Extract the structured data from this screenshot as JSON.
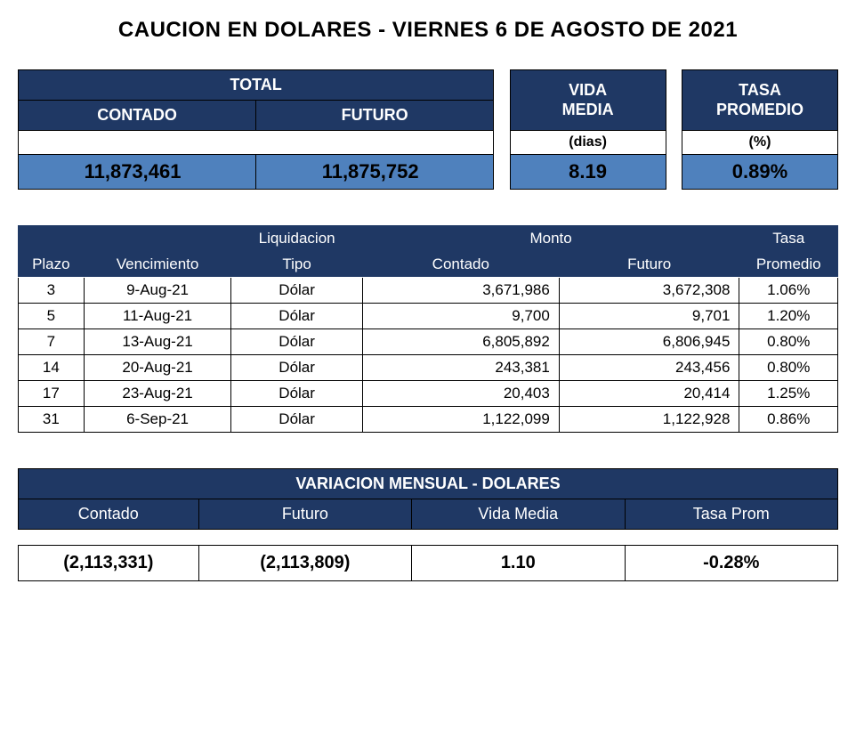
{
  "title": "CAUCION EN DOLARES - VIERNES 6 DE AGOSTO DE 2021",
  "summary": {
    "headers": {
      "total": "TOTAL",
      "contado": "CONTADO",
      "futuro": "FUTURO",
      "vida_media": "VIDA MEDIA",
      "tasa_promedio": "TASA PROMEDIO",
      "dias": "(dias)",
      "pct": "(%)"
    },
    "values": {
      "contado": "11,873,461",
      "futuro": "11,875,752",
      "vida_media": "8.19",
      "tasa_promedio": "0.89%"
    },
    "colors": {
      "header_bg": "#1f3864",
      "header_fg": "#ffffff",
      "value_bg": "#4f81bd",
      "border": "#000000"
    }
  },
  "detail": {
    "headers_top": {
      "plazo": "",
      "vencimiento": "",
      "liquidacion": "Liquidacion",
      "monto": "Monto",
      "tasa": "Tasa"
    },
    "headers_bottom": {
      "plazo": "Plazo",
      "vencimiento": "Vencimiento",
      "tipo": "Tipo",
      "contado": "Contado",
      "futuro": "Futuro",
      "promedio": "Promedio"
    },
    "columns": [
      "plazo",
      "vencimiento",
      "tipo",
      "contado",
      "futuro",
      "tasa"
    ],
    "col_align": [
      "c",
      "c",
      "c",
      "r",
      "r",
      "c"
    ],
    "col_widths_pct": [
      8,
      18,
      16,
      24,
      22,
      12
    ],
    "rows": [
      {
        "plazo": "3",
        "vencimiento": "9-Aug-21",
        "tipo": "Dólar",
        "contado": "3,671,986",
        "futuro": "3,672,308",
        "tasa": "1.06%"
      },
      {
        "plazo": "5",
        "vencimiento": "11-Aug-21",
        "tipo": "Dólar",
        "contado": "9,700",
        "futuro": "9,701",
        "tasa": "1.20%"
      },
      {
        "plazo": "7",
        "vencimiento": "13-Aug-21",
        "tipo": "Dólar",
        "contado": "6,805,892",
        "futuro": "6,806,945",
        "tasa": "0.80%"
      },
      {
        "plazo": "14",
        "vencimiento": "20-Aug-21",
        "tipo": "Dólar",
        "contado": "243,381",
        "futuro": "243,456",
        "tasa": "0.80%"
      },
      {
        "plazo": "17",
        "vencimiento": "23-Aug-21",
        "tipo": "Dólar",
        "contado": "20,403",
        "futuro": "20,414",
        "tasa": "1.25%"
      },
      {
        "plazo": "31",
        "vencimiento": "6-Sep-21",
        "tipo": "Dólar",
        "contado": "1,122,099",
        "futuro": "1,122,928",
        "tasa": "0.86%"
      }
    ]
  },
  "variation": {
    "title": "VARIACION MENSUAL - DOLARES",
    "headers": {
      "contado": "Contado",
      "futuro": "Futuro",
      "vida_media": "Vida Media",
      "tasa_prom": "Tasa Prom"
    },
    "values": {
      "contado": "(2,113,331)",
      "futuro": "(2,113,809)",
      "vida_media": "1.10",
      "tasa_prom": "-0.28%"
    }
  }
}
